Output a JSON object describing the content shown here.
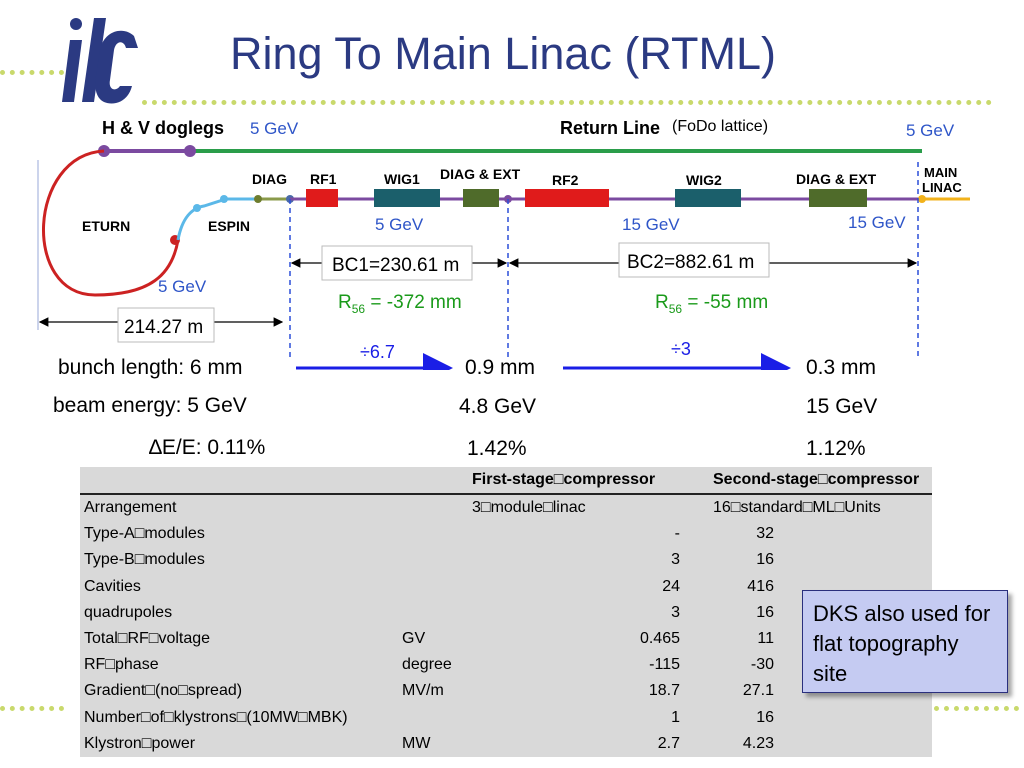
{
  "title": "Ring To Main Linac (RTML)",
  "logo_text": "ilc",
  "schematic": {
    "hv_doglegs": "H & V doglegs",
    "return_line": "Return Line",
    "fodo": "(FoDo lattice)",
    "eturn": "ETURN",
    "espin": "ESPIN",
    "diag": "DIAG",
    "rf1": "RF1",
    "wig1": "WIG1",
    "diag_ext": "DIAG & EXT",
    "rf2": "RF2",
    "wig2": "WIG2",
    "main_linac_1": "MAIN",
    "main_linac_2": "LINAC",
    "e_5gev": "5 GeV",
    "e_15gev": "15 GeV",
    "bc1": "BC1=230.61 m",
    "bc2": "BC2=882.61 m",
    "dist_214": "214.27 m",
    "r56_1_val": " = -372 mm",
    "r56_2_val": " = -55 mm",
    "r56_symbol": "R",
    "r56_sub": "56",
    "ratio_1": "÷6.7",
    "ratio_2": "÷3"
  },
  "bunch": {
    "length_label": "bunch length: 6 mm",
    "length_mid": "0.9 mm",
    "length_end": "0.3 mm",
    "energy_label": "beam energy: 5 GeV",
    "energy_mid": "4.8 GeV",
    "energy_end": "15 GeV",
    "spread_label": "∆E/E: 0.11%",
    "spread_mid": "1.42%",
    "spread_end": "1.12%"
  },
  "table": {
    "headers": [
      "",
      "",
      "First-stage□compressor",
      "Second-stage□compressor"
    ],
    "rows": [
      [
        "Arrangement",
        "",
        "3□module□linac",
        "16□standard□ML□Units"
      ],
      [
        "Type-A□modules",
        "",
        "-",
        "32"
      ],
      [
        "Type-B□modules",
        "",
        "3",
        "16"
      ],
      [
        "Cavities",
        "",
        "24",
        "416"
      ],
      [
        "quadrupoles",
        "",
        "3",
        "16"
      ],
      [
        "Total□RF□voltage",
        "GV",
        "0.465",
        "11"
      ],
      [
        "RF□phase",
        "degree",
        "-115",
        "-30"
      ],
      [
        "Gradient□(no□spread)",
        "MV/m",
        "18.7",
        "27.1"
      ],
      [
        "Number□of□klystrons□(10MW□MBK)",
        "",
        "1",
        "16"
      ],
      [
        "Klystron□power",
        "MW",
        "2.7",
        "4.23"
      ]
    ]
  },
  "note": "DKS also used for flat topography site",
  "colors": {
    "title": "#2b3a82",
    "energy_label": "#2e55c8",
    "r56": "#1a9a1a",
    "rf": "#e01b1b",
    "wig": "#1b5f6b",
    "diag_ext": "#4f6b2a",
    "return_line": "#2a9d4a",
    "beamline": "#7b4aa0",
    "eturn": "#cc2222",
    "arrow": "#1a1ee6",
    "note_bg": "#c5cbf2",
    "table_bg": "#d9d9d9",
    "main_linac": "#f2b21b"
  },
  "icons": [
    "ilc-logo",
    "right-arrow",
    "double-arrow"
  ]
}
